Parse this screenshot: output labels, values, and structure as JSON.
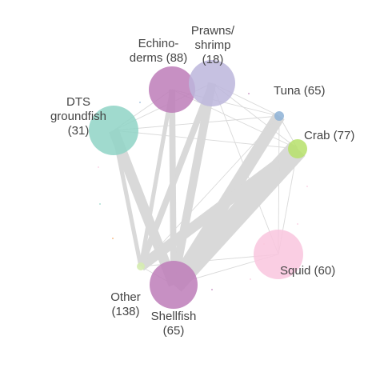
{
  "network": {
    "nodes": [
      {
        "id": "echinoderms",
        "label_lines": [
          "Echino-",
          "derms (88)"
        ],
        "color": "#bd7db8"
      },
      {
        "id": "prawns",
        "label_lines": [
          "Prawns/",
          "shrimp",
          "(18)"
        ],
        "color": "#bcb6dc"
      },
      {
        "id": "tuna",
        "label_lines": [
          "Tuna (65)"
        ],
        "color": "#8db1d6"
      },
      {
        "id": "dts",
        "label_lines": [
          "DTS",
          "groundfish",
          "(31)"
        ],
        "color": "#8fd3c6"
      },
      {
        "id": "crab",
        "label_lines": [
          "Crab (77)"
        ],
        "color": "#b6e06a"
      },
      {
        "id": "squid",
        "label_lines": [
          "Squid (60)"
        ],
        "color": "#f9c6de"
      },
      {
        "id": "other",
        "label_lines": [
          "Other",
          "(138)"
        ],
        "color": "#d5ecb0"
      },
      {
        "id": "shellfish",
        "label_lines": [
          "Shellfish",
          "(65)"
        ],
        "color": "#bd7db8"
      }
    ],
    "edges": [
      {
        "source": "crab",
        "target": "shellfish",
        "weight": 10
      },
      {
        "source": "tuna",
        "target": "shellfish",
        "weight": 6
      },
      {
        "source": "crab",
        "target": "other",
        "weight": 5
      },
      {
        "source": "dts",
        "target": "shellfish",
        "weight": 5
      },
      {
        "source": "prawns",
        "target": "shellfish",
        "weight": 4
      },
      {
        "source": "prawns",
        "target": "other",
        "weight": 3
      },
      {
        "source": "echinoderms",
        "target": "shellfish",
        "weight": 3
      },
      {
        "source": "echinoderms",
        "target": "other",
        "weight": 2
      },
      {
        "source": "dts",
        "target": "other",
        "weight": 2
      },
      {
        "source": "squid",
        "target": "shellfish",
        "weight": 1
      },
      {
        "source": "tuna",
        "target": "other",
        "weight": 1
      },
      {
        "source": "prawns",
        "target": "crab",
        "weight": 1
      },
      {
        "source": "prawns",
        "target": "tuna",
        "weight": 1
      },
      {
        "source": "dts",
        "target": "tuna",
        "weight": 1
      },
      {
        "source": "dts",
        "target": "crab",
        "weight": 1
      },
      {
        "source": "echinoderms",
        "target": "crab",
        "weight": 1
      },
      {
        "source": "echinoderms",
        "target": "tuna",
        "weight": 1
      },
      {
        "source": "crab",
        "target": "squid",
        "weight": 1
      },
      {
        "source": "tuna",
        "target": "squid",
        "weight": 1
      },
      {
        "source": "prawns",
        "target": "squid",
        "weight": 1
      },
      {
        "source": "dts",
        "target": "prawns",
        "weight": 1
      },
      {
        "source": "dts",
        "target": "echinoderms",
        "weight": 1
      },
      {
        "source": "other",
        "target": "squid",
        "weight": 1
      },
      {
        "source": "other",
        "target": "shellfish",
        "weight": 1
      },
      {
        "source": "tuna",
        "target": "crab",
        "weight": 1
      }
    ],
    "edge_color": "#d9d9d9"
  }
}
